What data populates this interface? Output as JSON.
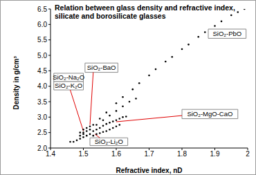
{
  "chart_data": {
    "type": "scatter",
    "title": "Relation between glass density and refractive index, silicate and borosilicate glasses",
    "x_label": "Refractive index, nD",
    "y_label": "Density in g/cm³",
    "x": [
      1.46,
      1.47,
      1.48,
      1.49,
      1.49,
      1.49,
      1.5,
      1.5,
      1.5,
      1.5,
      1.51,
      1.51,
      1.51,
      1.52,
      1.52,
      1.52,
      1.53,
      1.54,
      1.55,
      1.56,
      1.57,
      1.58,
      1.59,
      1.6,
      1.61,
      1.53,
      1.54,
      1.55,
      1.56,
      1.57,
      1.58,
      1.59,
      1.6,
      1.61,
      1.62,
      1.63,
      1.54,
      1.56,
      1.58,
      1.6,
      1.62,
      1.64,
      1.66,
      1.53,
      1.55,
      1.57,
      1.6,
      1.62,
      1.65,
      1.67,
      1.7,
      1.72,
      1.75,
      1.77,
      1.8,
      1.82,
      1.85,
      1.87,
      1.9,
      1.92,
      1.95,
      1.97,
      1.99
    ],
    "values": [
      2.2,
      2.2,
      2.25,
      2.3,
      2.4,
      2.5,
      2.35,
      2.45,
      2.5,
      2.6,
      2.4,
      2.55,
      2.65,
      2.45,
      2.6,
      2.7,
      2.4,
      2.45,
      2.48,
      2.52,
      2.55,
      2.6,
      2.65,
      2.7,
      2.75,
      2.55,
      2.6,
      2.65,
      2.72,
      2.78,
      2.82,
      2.86,
      2.9,
      2.95,
      3.0,
      3.02,
      2.75,
      2.9,
      3.05,
      3.2,
      3.35,
      3.5,
      3.6,
      2.75,
      2.95,
      3.15,
      3.45,
      3.65,
      3.9,
      4.1,
      4.35,
      4.55,
      4.8,
      4.95,
      5.2,
      5.35,
      5.6,
      5.75,
      5.95,
      6.1,
      6.3,
      6.4,
      6.5
    ],
    "color": "#000000",
    "marker": "circle",
    "xlim": [
      1.4,
      2
    ],
    "xticks": [
      1.4,
      1.5,
      1.6,
      1.7,
      1.8,
      1.9,
      2
    ],
    "ylim": [
      2,
      6.5
    ],
    "yticks": [
      {
        "value": 2,
        "label": "2.0"
      },
      2.5,
      {
        "value": 3,
        "label": "3.0"
      },
      3.5,
      {
        "value": 4,
        "label": "4.0"
      },
      4.5,
      {
        "value": 5,
        "label": "5.0"
      },
      5.5,
      {
        "value": 6,
        "label": "6.0"
      },
      6.5
    ],
    "grid": false,
    "annotations": [
      "SiO₂-PbO",
      "SiO₂-BaO",
      "SiO₂-Na₂O",
      "SiO₂-K₂O",
      "SiO₂-MgO-CaO",
      "SiO₂-Li₂O"
    ]
  }
}
